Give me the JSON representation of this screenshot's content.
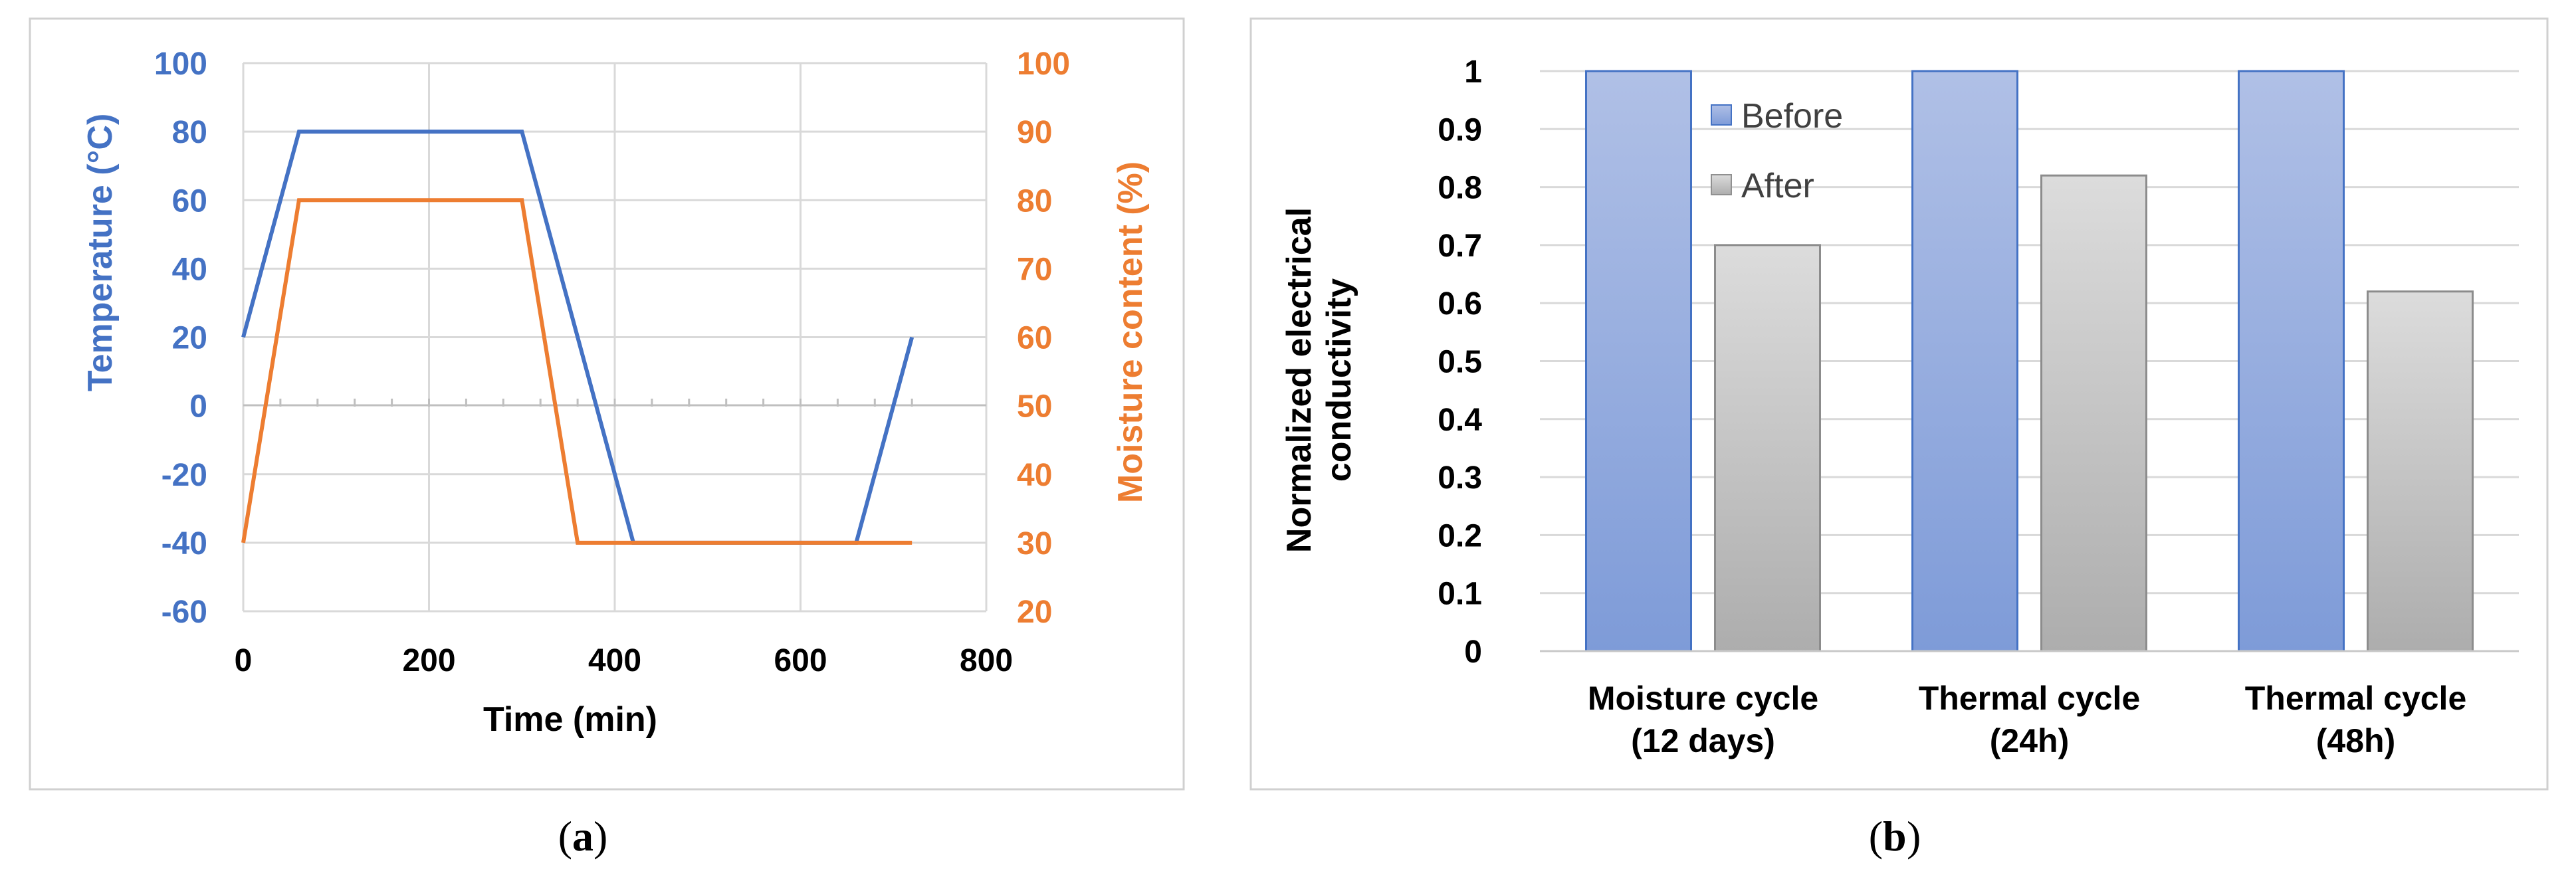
{
  "colors": {
    "temp": "#4472C4",
    "moist": "#ED7D31",
    "grid": "#D9D9D9",
    "text": "#000000",
    "frame": "#D0D0D0"
  },
  "chart_data": [
    {
      "id": "a",
      "type": "line",
      "caption_letter": "a",
      "xlabel": "Time (min)",
      "ylabel_left": "Temperature (°C)",
      "ylabel_right": "Moisture content (%)",
      "xlim": [
        0,
        800
      ],
      "xticks": [
        "0",
        "200",
        "400",
        "600",
        "800"
      ],
      "ylim_left": [
        -60,
        100
      ],
      "yticks_left": [
        "100",
        "80",
        "60",
        "40",
        "20",
        "0",
        "-20",
        "-40",
        "-60"
      ],
      "ylim_right": [
        20,
        100
      ],
      "yticks_right": [
        "100",
        "90",
        "80",
        "70",
        "60",
        "50",
        "40",
        "30",
        "20"
      ],
      "series": [
        {
          "name": "Temperature",
          "axis": "left",
          "color": "#4472C4",
          "x": [
            0,
            60,
            300,
            420,
            660,
            720
          ],
          "y": [
            20,
            80,
            80,
            -40,
            -40,
            20
          ]
        },
        {
          "name": "Moisture content",
          "axis": "right",
          "color": "#ED7D31",
          "x": [
            0,
            60,
            300,
            360,
            720
          ],
          "y": [
            30,
            80,
            80,
            30,
            30
          ]
        }
      ]
    },
    {
      "id": "b",
      "type": "bar",
      "caption_letter": "b",
      "ylabel_line1": "Normalized electrical",
      "ylabel_line2": "conductivity",
      "ylim": [
        0,
        1
      ],
      "yticks": [
        "1",
        "0.9",
        "0.8",
        "0.7",
        "0.6",
        "0.5",
        "0.4",
        "0.3",
        "0.2",
        "0.1",
        "0"
      ],
      "categories": [
        {
          "line1": "Moisture cycle",
          "line2": "(12 days)"
        },
        {
          "line1": "Thermal cycle",
          "line2": "(24h)"
        },
        {
          "line1": "Thermal cycle",
          "line2": "(48h)"
        }
      ],
      "series": [
        {
          "name": "Before",
          "color": "#8FA8DC",
          "values": [
            1,
            1,
            1
          ]
        },
        {
          "name": "After",
          "color": "#C4C4C4",
          "values": [
            0.7,
            0.82,
            0.62
          ]
        }
      ]
    }
  ]
}
